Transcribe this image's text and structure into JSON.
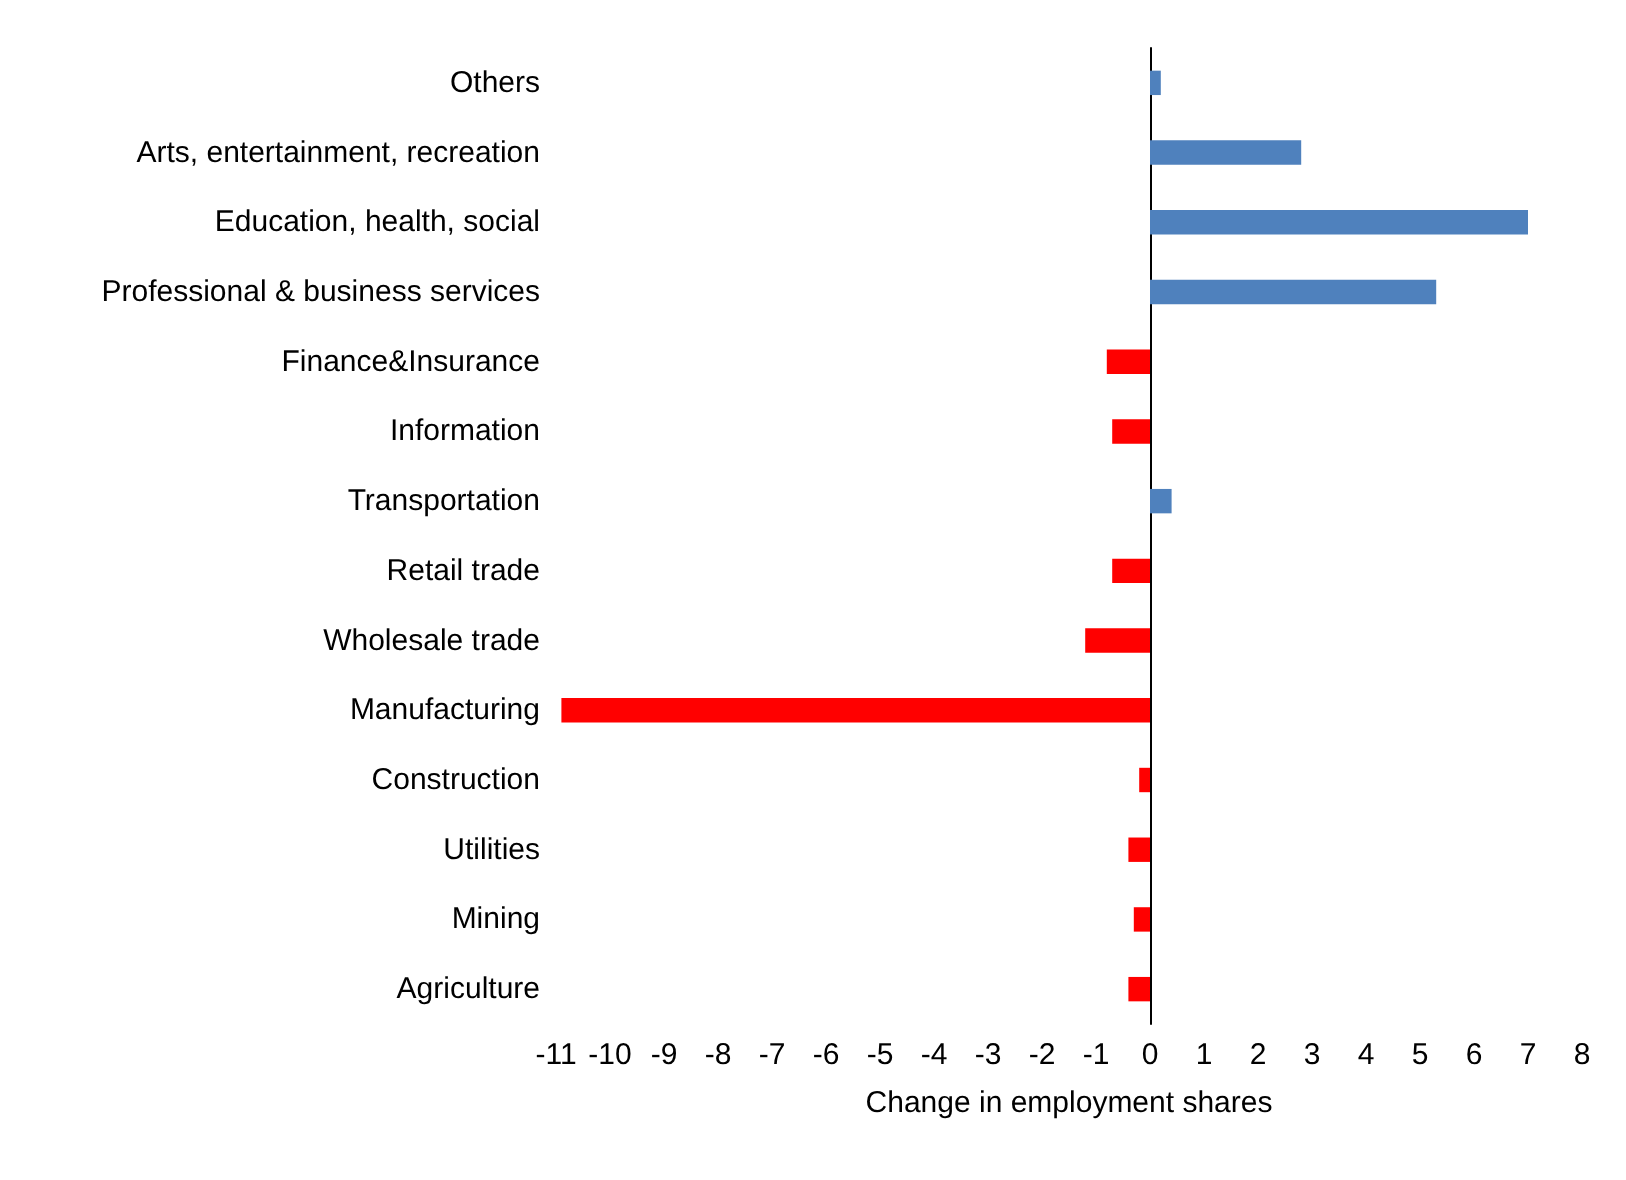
{
  "chart_data": {
    "type": "bar",
    "orientation": "horizontal",
    "xlabel": "Change in employment shares",
    "categories": [
      "Others",
      "Arts, entertainment, recreation",
      "Education, health, social",
      "Professional & business services",
      "Finance&Insurance",
      "Information",
      "Transportation",
      "Retail trade",
      "Wholesale trade",
      "Manufacturing",
      "Construction",
      "Utilities",
      "Mining",
      "Agriculture"
    ],
    "values": [
      0.2,
      2.8,
      7.0,
      5.3,
      -0.8,
      -0.7,
      0.4,
      -0.7,
      -1.2,
      -10.9,
      -0.2,
      -0.4,
      -0.3,
      -0.4
    ],
    "colors": [
      "#4f81bd",
      "#4f81bd",
      "#4f81bd",
      "#4f81bd",
      "#ff0000",
      "#ff0000",
      "#4f81bd",
      "#ff0000",
      "#ff0000",
      "#ff0000",
      "#ff0000",
      "#ff0000",
      "#ff0000",
      "#ff0000"
    ],
    "xlim": [
      -11,
      8
    ],
    "xticks": [
      -11,
      -10,
      -9,
      -8,
      -7,
      -6,
      -5,
      -4,
      -3,
      -2,
      -1,
      0,
      1,
      2,
      3,
      4,
      5,
      6,
      7,
      8
    ]
  }
}
